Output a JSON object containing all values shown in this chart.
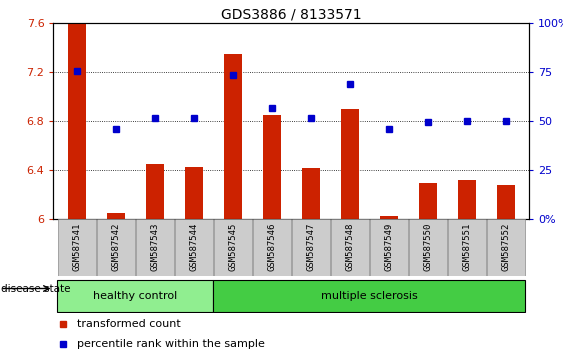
{
  "title": "GDS3886 / 8133571",
  "samples": [
    "GSM587541",
    "GSM587542",
    "GSM587543",
    "GSM587544",
    "GSM587545",
    "GSM587546",
    "GSM587547",
    "GSM587548",
    "GSM587549",
    "GSM587550",
    "GSM587551",
    "GSM587552"
  ],
  "bar_values": [
    7.6,
    6.05,
    6.45,
    6.43,
    7.35,
    6.85,
    6.42,
    6.9,
    6.03,
    6.3,
    6.32,
    6.28
  ],
  "blue_values": [
    7.21,
    6.74,
    6.83,
    6.83,
    7.18,
    6.91,
    6.83,
    7.1,
    6.74,
    6.79,
    6.8,
    6.8
  ],
  "ylim_left": [
    6.0,
    7.6
  ],
  "ylim_right": [
    0,
    100
  ],
  "yticks_left": [
    6.0,
    6.4,
    6.8,
    7.2,
    7.6
  ],
  "yticks_right": [
    0,
    25,
    50,
    75,
    100
  ],
  "ytick_labels_left": [
    "6",
    "6.4",
    "6.8",
    "7.2",
    "7.6"
  ],
  "ytick_labels_right": [
    "0%",
    "25",
    "50",
    "75",
    "100%"
  ],
  "bar_color": "#cc2200",
  "blue_color": "#0000cc",
  "bar_base": 6.0,
  "healthy_count": 4,
  "healthy_color": "#90ee90",
  "ms_color": "#44cc44",
  "healthy_label": "healthy control",
  "ms_label": "multiple sclerosis",
  "disease_state_label": "disease state",
  "legend_bar_label": "transformed count",
  "legend_blue_label": "percentile rank within the sample",
  "title_fontsize": 10,
  "bar_width": 0.45
}
